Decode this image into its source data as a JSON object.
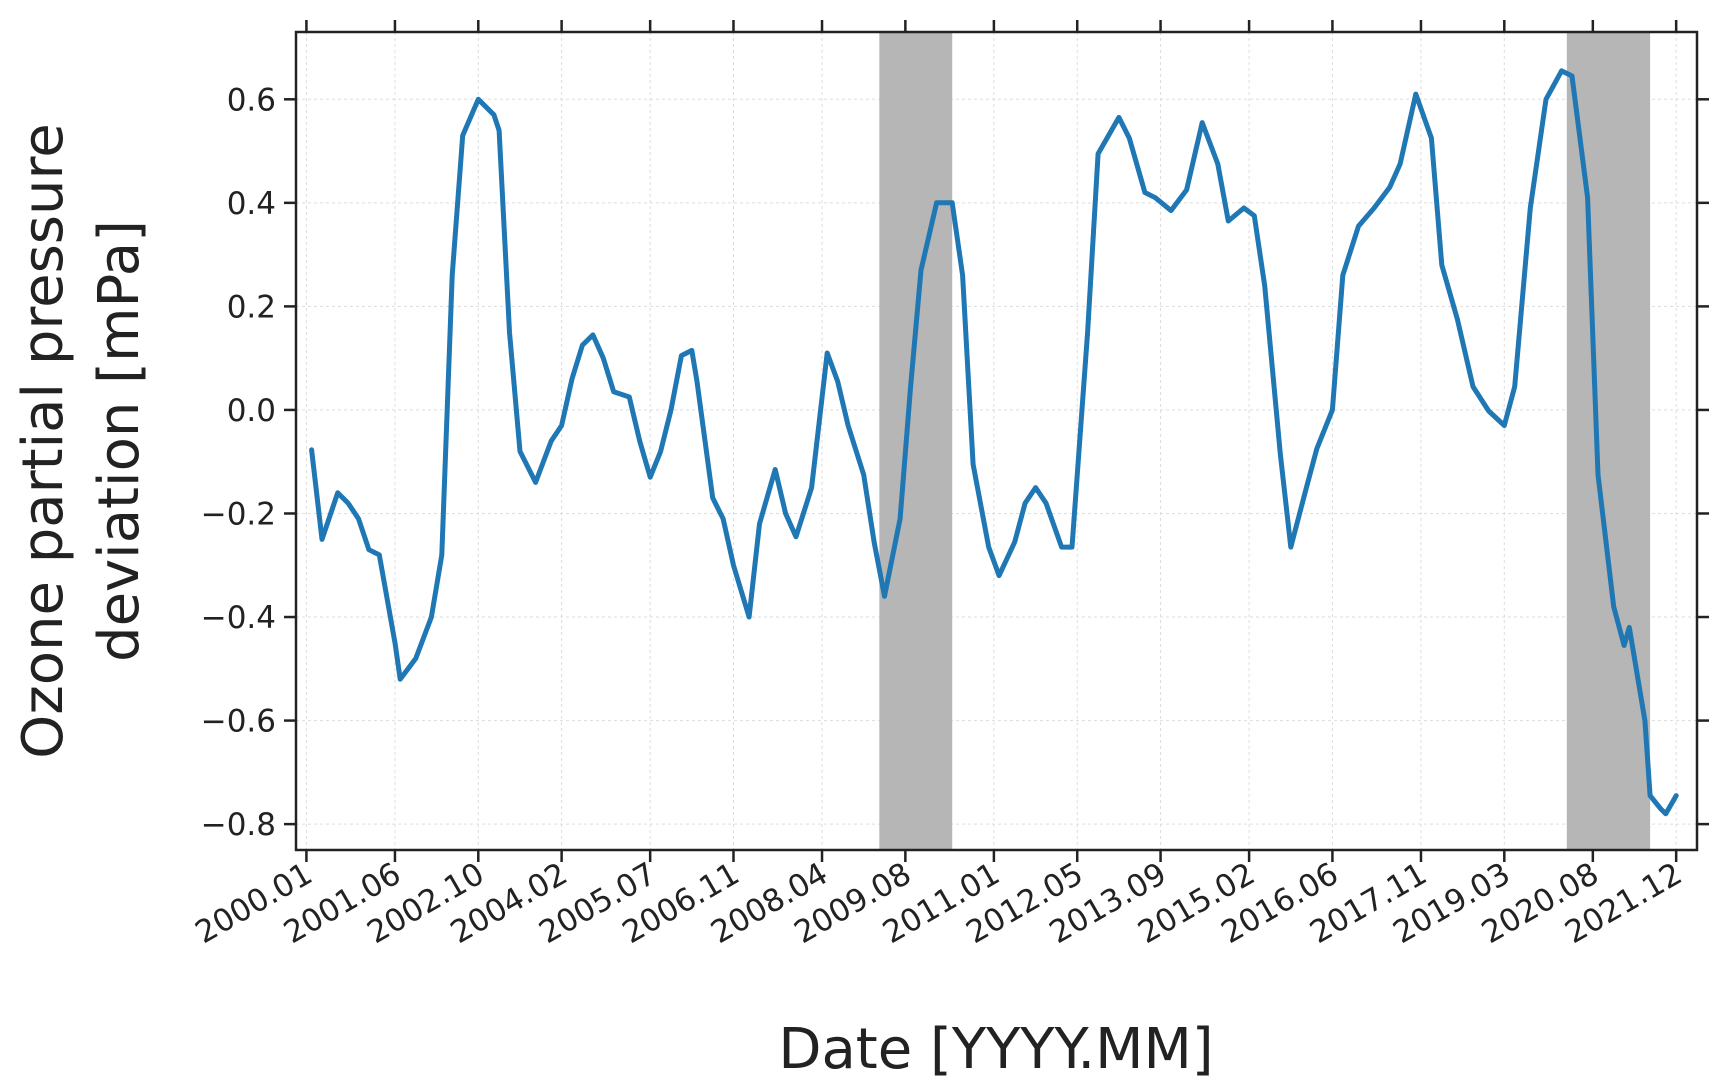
{
  "chart_data": {
    "type": "line",
    "xlabel": "Date [YYYY.MM]",
    "ylabel": [
      "Ozone partial pressure",
      "deviation [mPa]"
    ],
    "x": [
      "2000.02",
      "2000.04",
      "2000.07",
      "2000.09",
      "2000.11",
      "2001.01",
      "2001.03",
      "2001.06",
      "2001.07",
      "2001.10",
      "2002.01",
      "2002.03",
      "2002.05",
      "2002.07",
      "2002.10",
      "2003.01",
      "2003.02",
      "2003.04",
      "2003.06",
      "2003.09",
      "2003.12",
      "2004.02",
      "2004.04",
      "2004.06",
      "2004.08",
      "2004.10",
      "2004.12",
      "2005.03",
      "2005.05",
      "2005.07",
      "2005.09",
      "2005.11",
      "2006.01",
      "2006.03",
      "2006.04",
      "2006.07",
      "2006.09",
      "2006.11",
      "2007.02",
      "2007.04",
      "2007.07",
      "2007.09",
      "2007.11",
      "2008.02",
      "2008.05",
      "2008.07",
      "2008.09",
      "2008.12",
      "2009.02",
      "2009.04",
      "2009.07",
      "2009.09",
      "2009.11",
      "2010.02",
      "2010.05",
      "2010.07",
      "2010.09",
      "2010.12",
      "2011.02",
      "2011.05",
      "2011.07",
      "2011.09",
      "2011.11",
      "2012.02",
      "2012.04",
      "2012.07",
      "2012.09",
      "2013.01",
      "2013.03",
      "2013.06",
      "2013.08",
      "2013.11",
      "2014.02",
      "2014.05",
      "2014.08",
      "2014.10",
      "2015.01",
      "2015.03",
      "2015.05",
      "2015.08",
      "2015.10",
      "2016.01",
      "2016.03",
      "2016.06",
      "2016.08",
      "2016.11",
      "2017.02",
      "2017.05",
      "2017.07",
      "2017.10",
      "2018.01",
      "2018.03",
      "2018.06",
      "2018.09",
      "2018.12",
      "2019.03",
      "2019.05",
      "2019.08",
      "2019.11",
      "2020.02",
      "2020.04",
      "2020.07",
      "2020.09",
      "2020.12",
      "2021.02",
      "2021.03",
      "2021.06",
      "2021.07",
      "2021.09",
      "2021.10",
      "2021.12"
    ],
    "series": [
      {
        "color": "#1f77b4",
        "values": [
          -0.077,
          -0.25,
          -0.16,
          -0.18,
          -0.21,
          -0.27,
          -0.28,
          -0.45,
          -0.52,
          -0.48,
          -0.4,
          -0.28,
          0.26,
          0.53,
          0.6,
          0.57,
          0.54,
          0.15,
          -0.08,
          -0.14,
          -0.06,
          -0.03,
          0.06,
          0.125,
          0.145,
          0.1,
          0.035,
          0.025,
          -0.06,
          -0.13,
          -0.08,
          0.0,
          0.105,
          0.115,
          0.055,
          -0.17,
          -0.21,
          -0.3,
          -0.4,
          -0.22,
          -0.115,
          -0.2,
          -0.245,
          -0.15,
          0.11,
          0.055,
          -0.03,
          -0.125,
          -0.255,
          -0.36,
          -0.21,
          0.045,
          0.27,
          0.4,
          0.4,
          0.26,
          -0.105,
          -0.265,
          -0.32,
          -0.255,
          -0.18,
          -0.15,
          -0.18,
          -0.265,
          -0.265,
          0.15,
          0.495,
          0.565,
          0.525,
          0.42,
          0.41,
          0.385,
          0.425,
          0.555,
          0.475,
          0.365,
          0.39,
          0.375,
          0.24,
          -0.085,
          -0.265,
          -0.15,
          -0.075,
          0.0,
          0.26,
          0.355,
          0.39,
          0.43,
          0.475,
          0.61,
          0.525,
          0.28,
          0.175,
          0.045,
          -0.002,
          -0.03,
          0.045,
          0.39,
          0.6,
          0.655,
          0.645,
          0.41,
          -0.125,
          -0.38,
          -0.455,
          -0.42,
          -0.6,
          -0.745,
          -0.77,
          -0.78,
          -0.745
        ]
      }
    ],
    "shaded_regions": [
      [
        "2009.03",
        "2010.05"
      ],
      [
        "2020.03",
        "2021.07"
      ]
    ],
    "shade_color": "#b5b6b5",
    "xlim": [
      "1999.11",
      "2022.04"
    ],
    "xticks": [
      "2000.01",
      "2001.06",
      "2002.10",
      "2004.02",
      "2005.07",
      "2006.11",
      "2008.04",
      "2009.08",
      "2011.01",
      "2012.05",
      "2013.09",
      "2015.02",
      "2016.06",
      "2017.11",
      "2019.03",
      "2020.08",
      "2021.12"
    ],
    "ylim": [
      -0.85,
      0.73
    ],
    "yticks": [
      {
        "value": -0.8,
        "label": "−0.8"
      },
      {
        "value": -0.6,
        "label": "−0.6"
      },
      {
        "value": -0.4,
        "label": "−0.4"
      },
      {
        "value": -0.2,
        "label": "−0.2"
      },
      {
        "value": 0,
        "label": "0.0"
      },
      0.2,
      0.4,
      0.6
    ],
    "grid": true
  }
}
